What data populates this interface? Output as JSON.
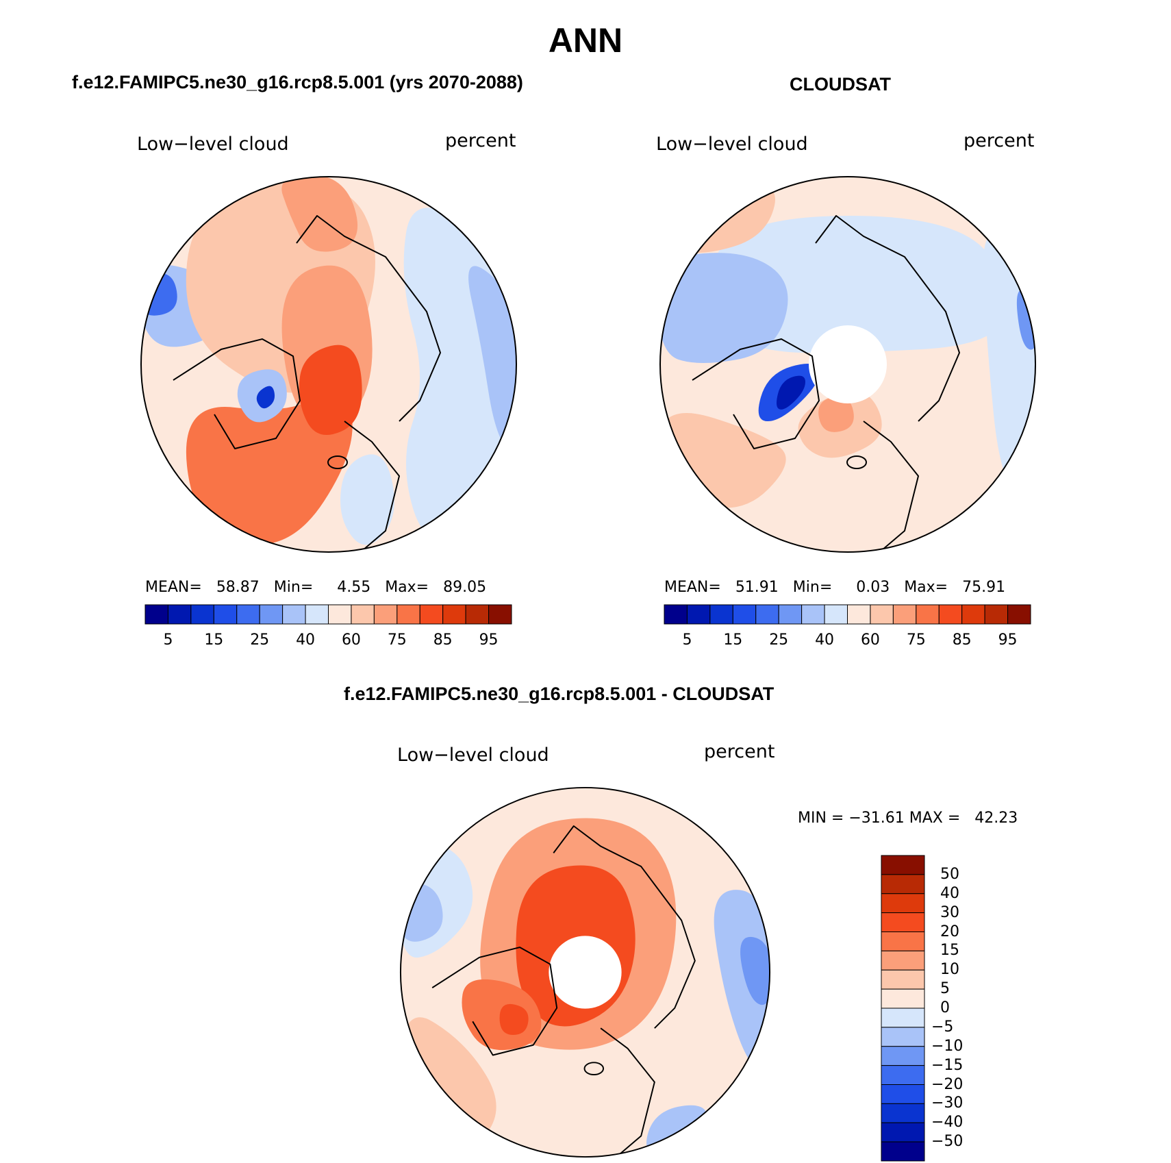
{
  "title": "ANN",
  "chart_data": [
    {
      "type": "heatmap",
      "subtitle": "f.e12.FAMIPC5.ne30_g16.rcp8.5.001 (yrs 2070-2088)",
      "variable": "Low−level cloud",
      "units": "percent",
      "stats": {
        "mean_label": "MEAN=",
        "mean": "58.87",
        "min_label": "Min=",
        "min": "4.55",
        "max_label": "Max=",
        "max": "89.05"
      },
      "colorbar": {
        "orientation": "horizontal",
        "levels": [
          "5",
          "15",
          "25",
          "40",
          "60",
          "75",
          "85",
          "95"
        ],
        "colors": [
          "#00008c",
          "#0018b0",
          "#0a34d0",
          "#1f4ee8",
          "#3d6cf0",
          "#6f97f4",
          "#a9c3f8",
          "#d6e6fb",
          "#fde8dc",
          "#fcc7ac",
          "#fb9f7a",
          "#f97447",
          "#f44b1f",
          "#de3a0c",
          "#b82a05",
          "#880f00"
        ]
      },
      "map_colors": {
        "land_outline": "#000000",
        "dominant": "#f97447",
        "pole_hole": false
      }
    },
    {
      "type": "heatmap",
      "subtitle": "CLOUDSAT",
      "variable": "Low−level cloud",
      "units": "percent",
      "stats": {
        "mean_label": "MEAN=",
        "mean": "51.91",
        "min_label": "Min=",
        "min": "0.03",
        "max_label": "Max=",
        "max": "75.91"
      },
      "colorbar": {
        "orientation": "horizontal",
        "levels": [
          "5",
          "15",
          "25",
          "40",
          "60",
          "75",
          "85",
          "95"
        ],
        "colors": [
          "#00008c",
          "#0018b0",
          "#0a34d0",
          "#1f4ee8",
          "#3d6cf0",
          "#6f97f4",
          "#a9c3f8",
          "#d6e6fb",
          "#fde8dc",
          "#fcc7ac",
          "#fb9f7a",
          "#f97447",
          "#f44b1f",
          "#de3a0c",
          "#b82a05",
          "#880f00"
        ]
      },
      "map_colors": {
        "land_outline": "#000000",
        "dominant": "#d6e6fb",
        "pole_hole": true
      }
    },
    {
      "type": "heatmap",
      "subtitle": "f.e12.FAMIPC5.ne30_g16.rcp8.5.001 - CLOUDSAT",
      "variable": "Low−level cloud",
      "units": "percent",
      "stats": {
        "text": "MIN = −31.61 MAX =   42.23"
      },
      "colorbar": {
        "orientation": "vertical",
        "levels": [
          "50",
          "40",
          "30",
          "20",
          "15",
          "10",
          "5",
          "0",
          "−5",
          "−10",
          "−15",
          "−20",
          "−30",
          "−40",
          "−50"
        ],
        "colors": [
          "#880f00",
          "#b82a05",
          "#de3a0c",
          "#f44b1f",
          "#f97447",
          "#fb9f7a",
          "#fcc7ac",
          "#fde8dc",
          "#d6e6fb",
          "#a9c3f8",
          "#6f97f4",
          "#3d6cf0",
          "#1f4ee8",
          "#0a34d0",
          "#0018b0",
          "#00008c"
        ]
      },
      "map_colors": {
        "land_outline": "#000000",
        "dominant": "#fb9f7a",
        "pole_hole": true
      }
    }
  ]
}
